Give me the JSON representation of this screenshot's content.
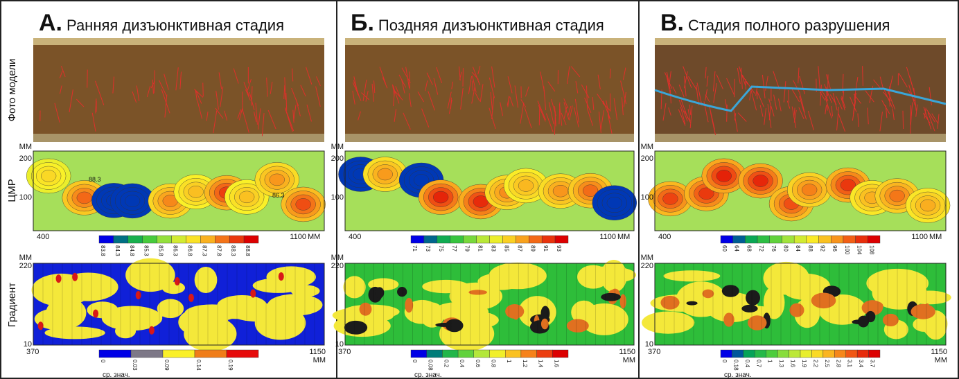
{
  "row_labels": [
    "Фото модели",
    "ЦМР",
    "Градиент"
  ],
  "panels": [
    {
      "letter": "А.",
      "title": "Ранняя дизъюнктивная стадия",
      "dem": {
        "unit": "ММ",
        "yticks": [
          "200",
          "100"
        ],
        "xticks": [
          "400",
          "1100"
        ],
        "x_unit": "ММ",
        "contour_labels": [
          "88.3",
          "86.3"
        ],
        "colorbar": [
          "83.8",
          "84.3",
          "84.8",
          "85.3",
          "85.8",
          "86.3",
          "86.8",
          "87.3",
          "87.8",
          "88.3",
          "88.8"
        ]
      },
      "gradient": {
        "unit": "ММ",
        "yticks": [
          "220",
          "10"
        ],
        "xticks": [
          "370",
          "1150"
        ],
        "x_unit": "ММ",
        "colorbar": [
          "0",
          "0.03",
          "0.09",
          "0.14",
          "0.19"
        ],
        "caption": "ср. знач."
      }
    },
    {
      "letter": "Б.",
      "title": "Поздняя дизъюнктивная стадия",
      "dem": {
        "unit": "ММ",
        "yticks": [
          "200",
          "100"
        ],
        "xticks": [
          "400",
          "1100"
        ],
        "x_unit": "ММ",
        "contour_labels": [],
        "colorbar": [
          "71",
          "73",
          "75",
          "77",
          "79",
          "81",
          "83",
          "85",
          "87",
          "89",
          "91",
          "93"
        ]
      },
      "gradient": {
        "unit": "ММ",
        "yticks": [
          "220",
          "10"
        ],
        "xticks": [
          "370",
          "1150"
        ],
        "x_unit": "ММ",
        "colorbar": [
          "0",
          "0.08",
          "0.2",
          "0.4",
          "0.6",
          "0.8",
          "1",
          "1.2",
          "1.4",
          "1.6"
        ],
        "caption": "ср. знач."
      }
    },
    {
      "letter": "В.",
      "title": "Стадия полного разрушения",
      "dem": {
        "unit": "ММ",
        "yticks": [
          "200",
          "100"
        ],
        "xticks": [
          "400",
          "1100"
        ],
        "x_unit": "ММ",
        "contour_labels": [],
        "colorbar": [
          "60",
          "64",
          "68",
          "72",
          "76",
          "80",
          "84",
          "88",
          "92",
          "96",
          "100",
          "104",
          "108"
        ]
      },
      "gradient": {
        "unit": "ММ",
        "yticks": [
          "220",
          "10"
        ],
        "xticks": [
          "370",
          "1150"
        ],
        "x_unit": "ММ",
        "colorbar": [
          "0",
          "0.18",
          "0.4",
          "0.7",
          "1",
          "1.3",
          "1.6",
          "1.9",
          "2.2",
          "2.5",
          "2.8",
          "3.1",
          "3.4",
          "3.7"
        ],
        "caption": "ср. знач."
      }
    }
  ]
}
